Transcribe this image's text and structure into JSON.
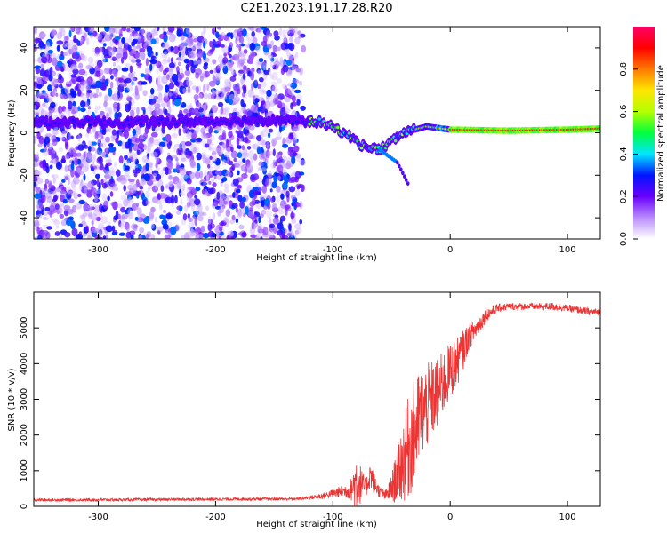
{
  "figure": {
    "title": "C2E1.2023.191.17.28.R20"
  },
  "chart_data": [
    {
      "type": "heatmap",
      "title": "",
      "xlabel": "Height of straight line (km)",
      "ylabel": "Frequency (Hz)",
      "xlim": [
        -355,
        128
      ],
      "ylim": [
        -50,
        50
      ],
      "xticks": [
        -300,
        -200,
        -100,
        0,
        100
      ],
      "yticks": [
        -40,
        -20,
        0,
        20,
        40
      ],
      "grid": false,
      "colorbar": {
        "label": "Normalized spectral amplitude",
        "range": [
          0,
          1
        ],
        "ticks": [
          0.0,
          0.2,
          0.4,
          0.6,
          0.8
        ],
        "colormap": [
          "#ffffff",
          "#b98cff",
          "#6a00ff",
          "#0014ff",
          "#00e6ff",
          "#00ff3c",
          "#b4ff00",
          "#ffe600",
          "#ff7a00",
          "#ff0000",
          "#ff0066"
        ]
      },
      "signal_trace": {
        "description_points_km_hz": [
          [
            -355,
            5
          ],
          [
            -250,
            5
          ],
          [
            -150,
            6
          ],
          [
            -110,
            5
          ],
          [
            -90,
            0
          ],
          [
            -75,
            -6
          ],
          [
            -60,
            -8
          ],
          [
            -40,
            0
          ],
          [
            -20,
            3
          ],
          [
            0,
            1.5
          ],
          [
            50,
            1
          ],
          [
            100,
            1.5
          ],
          [
            128,
            2
          ]
        ],
        "branch_points_km_hz": [
          [
            -60,
            -8
          ],
          [
            -45,
            -14
          ],
          [
            -35,
            -25
          ]
        ]
      }
    },
    {
      "type": "line",
      "title": "",
      "xlabel": "Height of straight line (km)",
      "ylabel": "SNR (10 * v/v)",
      "xlim": [
        -355,
        128
      ],
      "ylim": [
        0,
        6000
      ],
      "xticks": [
        -300,
        -200,
        -100,
        0,
        100
      ],
      "yticks": [
        0,
        1000,
        2000,
        3000,
        4000,
        5000
      ],
      "grid": false,
      "series": [
        {
          "color": "#ee3333",
          "envelope_x": [
            -355,
            -300,
            -200,
            -130,
            -110,
            -95,
            -85,
            -80,
            -75,
            -72,
            -68,
            -65,
            -60,
            -55,
            -50,
            -45,
            -40,
            -35,
            -30,
            -25,
            -20,
            -15,
            -10,
            -5,
            0,
            5,
            10,
            15,
            20,
            25,
            30,
            40,
            50,
            60,
            70,
            80,
            90,
            100,
            110,
            120,
            128
          ],
          "envelope_mean": [
            180,
            180,
            200,
            210,
            280,
            400,
            450,
            700,
            600,
            500,
            900,
            650,
            400,
            300,
            500,
            900,
            1300,
            1700,
            2100,
            2600,
            2800,
            3000,
            3200,
            3500,
            3800,
            4000,
            4300,
            4700,
            4900,
            5100,
            5350,
            5550,
            5600,
            5600,
            5600,
            5600,
            5600,
            5550,
            5500,
            5450,
            5450
          ],
          "envelope_spread": [
            40,
            40,
            40,
            40,
            80,
            150,
            250,
            900,
            400,
            250,
            400,
            300,
            150,
            150,
            400,
            800,
            1200,
            1500,
            1500,
            1300,
            1200,
            1100,
            1000,
            900,
            800,
            700,
            600,
            400,
            300,
            250,
            200,
            120,
            100,
            100,
            100,
            100,
            120,
            100,
            100,
            100,
            100
          ]
        }
      ]
    }
  ]
}
